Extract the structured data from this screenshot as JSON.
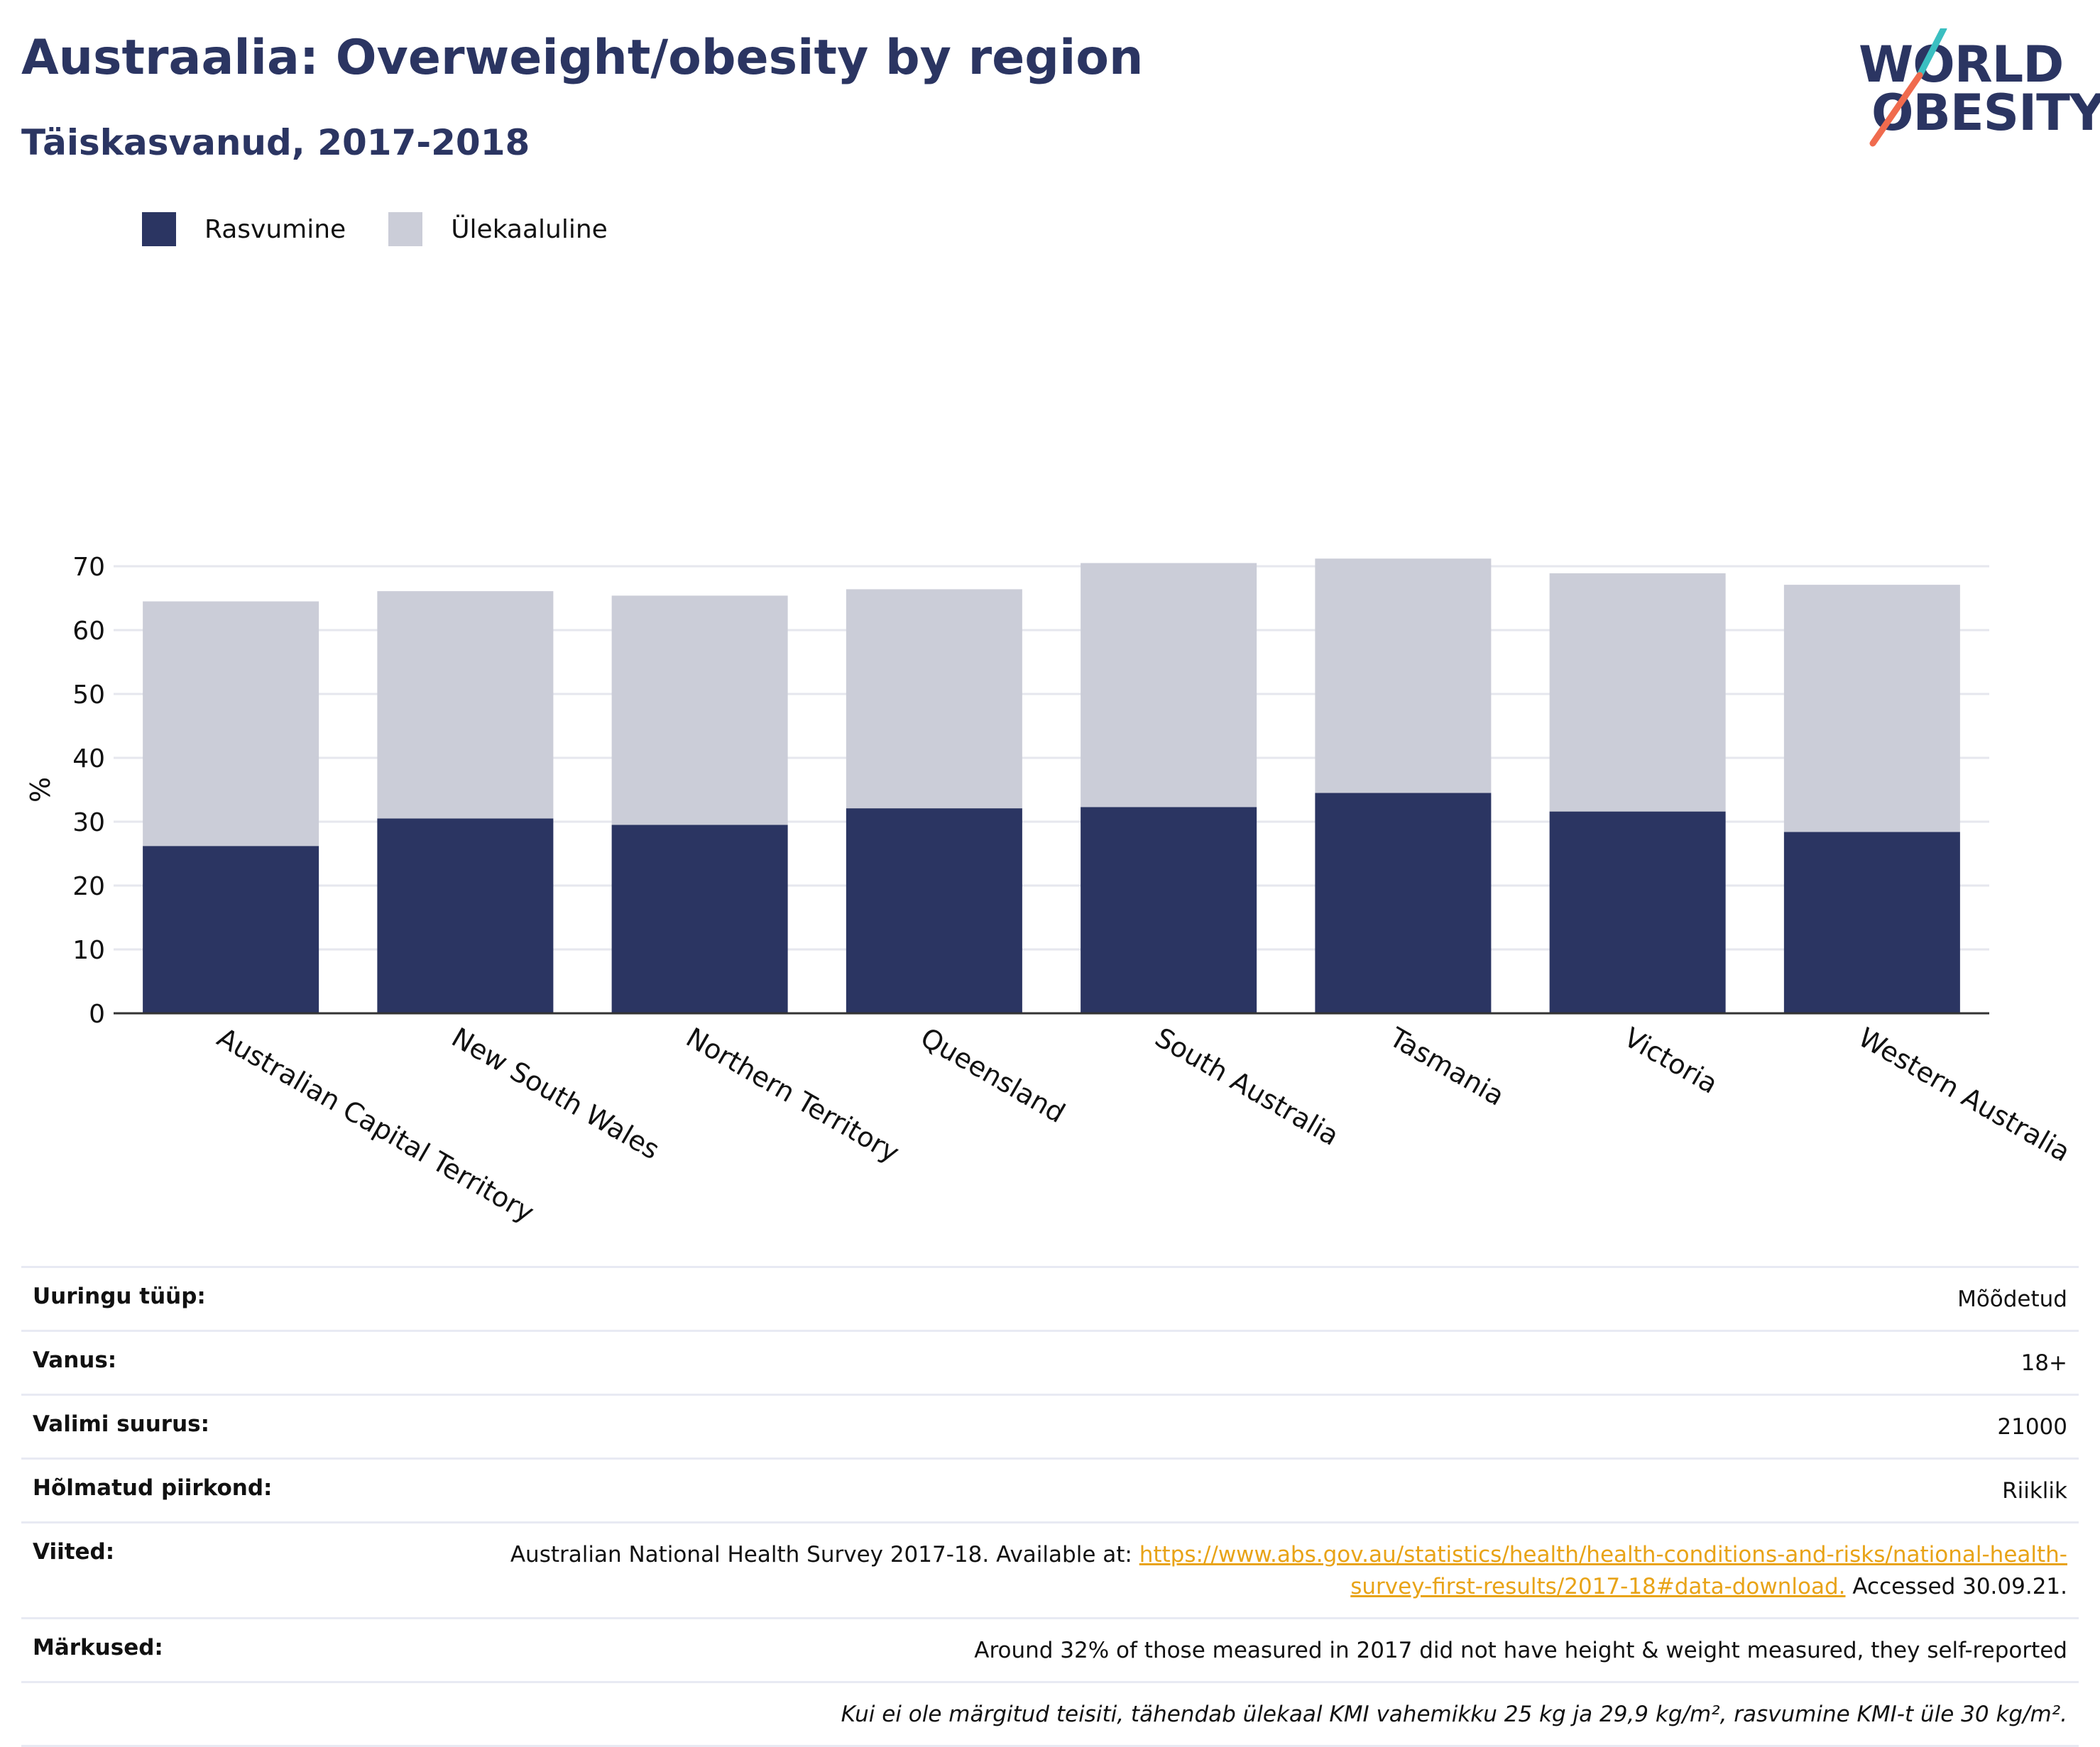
{
  "header": {
    "title": "Austraalia: Overweight/obesity by region",
    "subtitle": "Täiskasvanud, 2017-2018"
  },
  "logo": {
    "line1": "WORLD",
    "line2": "OBESITY",
    "colors": {
      "text": "#2b3562",
      "slash_top": "#3bbfc1",
      "slash_bottom": "#f06b4e"
    }
  },
  "colors": {
    "obesity": "#2b3562",
    "overweight": "#cbcdd8",
    "axis": "#333333",
    "grid": "#e6e7ee",
    "link": "#e8a317"
  },
  "chart_data": {
    "type": "bar",
    "stacked": true,
    "categories": [
      "Australian Capital Territory",
      "New South Wales",
      "Northern Territory",
      "Queensland",
      "South Australia",
      "Tasmania",
      "Victoria",
      "Western Australia"
    ],
    "series": [
      {
        "name": "Rasvumine",
        "color": "#2b3562",
        "values": [
          26.2,
          30.5,
          29.5,
          32.1,
          32.3,
          34.5,
          31.6,
          28.4
        ]
      },
      {
        "name": "Ülekaaluline",
        "color": "#cbcdd8",
        "values": [
          38.3,
          35.6,
          35.9,
          34.3,
          38.2,
          36.7,
          37.3,
          38.7
        ]
      }
    ],
    "ylabel": "%",
    "xlabel": "",
    "ylim": [
      0,
      70
    ],
    "yticks": [
      0,
      10,
      20,
      30,
      40,
      50,
      60,
      70
    ],
    "grid": true,
    "legend_position": "top-left"
  },
  "info": [
    {
      "key": "Uuringu tüüp:",
      "value": "Mõõdetud"
    },
    {
      "key": "Vanus:",
      "value": "18+"
    },
    {
      "key": "Valimi suurus:",
      "value": "21000"
    },
    {
      "key": "Hõlmatud piirkond:",
      "value": "Riiklik"
    }
  ],
  "references": {
    "key": "Viited:",
    "prefix": "Australian National Health Survey 2017-18. Available at: ",
    "link": "https://www.abs.gov.au/statistics/health/health-conditions-and-risks/national-health-survey-first-results/2017-18#data-download.",
    "suffix": " Accessed 30.09.21."
  },
  "notes": {
    "key": "Märkused:",
    "value": "Around 32% of those measured in 2017 did not have height & weight measured, they self-reported"
  },
  "footnote": "Kui ei ole märgitud teisiti, tähendab ülekaal KMI vahemikku 25 kg ja 29,9 kg/m², rasvumine KMI-t üle 30 kg/m²."
}
